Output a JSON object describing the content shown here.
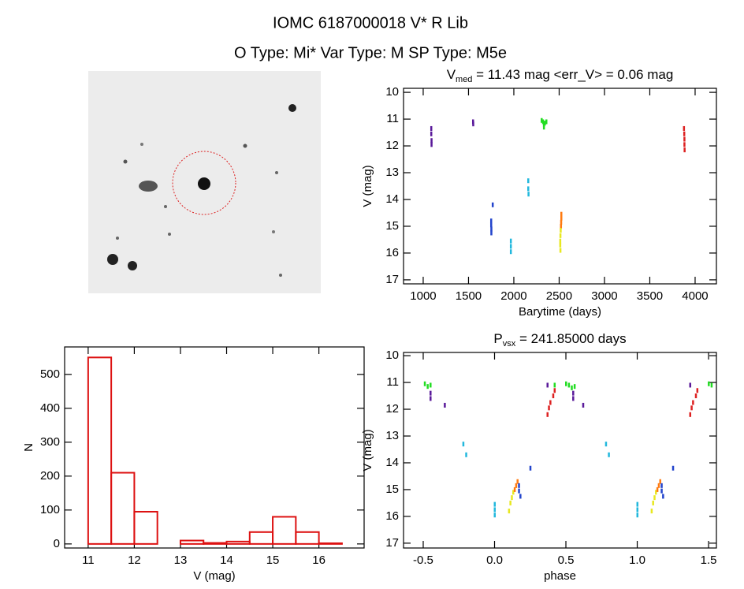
{
  "header": {
    "title": "IOMC 6187000018    V* R Lib",
    "subtitle": "O Type: Mi*   Var Type: M   SP Type: M5e"
  },
  "chart_data": [
    {
      "type": "scatter",
      "title": {
        "main": "V",
        "sub": "med",
        "rest": " = 11.43 mag <err_V> = 0.06 mag"
      },
      "xlabel": "Barytime (days)",
      "ylabel": "V (mag)",
      "xlim": [
        783,
        4235
      ],
      "ylim": [
        9.85,
        17.15
      ],
      "y_inverted": true,
      "xticks": [
        1000,
        1500,
        2000,
        2500,
        3000,
        3500,
        4000
      ],
      "yticks": [
        10,
        11,
        12,
        13,
        14,
        15,
        16,
        17
      ],
      "series": [
        {
          "color": "#5a1a9a",
          "x": [
            1087,
            1087,
            1090,
            1090,
            1548,
            1550
          ],
          "values": [
            11.35,
            11.55,
            11.8,
            11.95,
            11.1,
            11.18
          ]
        },
        {
          "color": "#22dd22",
          "x": [
            2305,
            2320,
            2330,
            2340,
            2357,
            2330
          ],
          "values": [
            11.05,
            11.1,
            11.2,
            11.15,
            11.1,
            11.3
          ]
        },
        {
          "color": "#dd2222",
          "x": [
            3875,
            3878,
            3880,
            3880,
            3882
          ],
          "values": [
            11.35,
            11.55,
            11.75,
            11.95,
            12.15
          ]
        },
        {
          "color": "#2244cc",
          "x": [
            1765,
            1748,
            1748,
            1750,
            1750
          ],
          "values": [
            14.2,
            14.8,
            14.95,
            15.1,
            15.25
          ]
        },
        {
          "color": "#22b8dd",
          "x": [
            1965,
            1965,
            1965,
            2157,
            2157,
            2160
          ],
          "values": [
            15.55,
            15.75,
            15.95,
            13.3,
            13.6,
            13.8
          ]
        },
        {
          "color": "#ff7a10",
          "x": [
            2522,
            2522,
            2520,
            2518
          ],
          "values": [
            14.55,
            14.7,
            14.85,
            15.0
          ]
        },
        {
          "color": "#e8e820",
          "x": [
            2515,
            2512,
            2510,
            2510,
            2512
          ],
          "values": [
            15.15,
            15.35,
            15.55,
            15.7,
            15.9
          ]
        }
      ]
    },
    {
      "type": "scatter",
      "title": {
        "main": "P",
        "sub": "vsx",
        "rest": " = 241.85000 days"
      },
      "xlabel": "phase",
      "ylabel": "V (mag)",
      "xlim": [
        -0.638,
        1.555
      ],
      "ylim": [
        9.88,
        17.18
      ],
      "y_inverted": true,
      "xticks": [
        -0.5,
        {
          "value": 0,
          "label": "0.0"
        },
        0.5,
        {
          "value": 1,
          "label": "1.0"
        },
        1.5
      ],
      "yticks": [
        10,
        11,
        12,
        13,
        14,
        15,
        16,
        17
      ],
      "series": [
        {
          "color": "#22dd22",
          "x": [
            -0.49,
            -0.47,
            -0.45,
            0.5,
            0.52,
            0.54,
            0.56,
            0.42,
            1.5,
            1.52
          ],
          "values": [
            11.05,
            11.15,
            11.1,
            11.05,
            11.1,
            11.2,
            11.15,
            11.1,
            11.05,
            11.1
          ]
        },
        {
          "color": "#5a1a9a",
          "x": [
            -0.45,
            -0.45,
            -0.35,
            0.37,
            0.55,
            0.55,
            0.62,
            1.37
          ],
          "values": [
            11.4,
            11.6,
            11.85,
            11.1,
            11.4,
            11.6,
            11.85,
            11.1
          ]
        },
        {
          "color": "#dd2222",
          "x": [
            0.37,
            0.38,
            0.39,
            0.41,
            0.42,
            1.37,
            1.38,
            1.39,
            1.41,
            1.42
          ],
          "values": [
            12.2,
            11.95,
            11.75,
            11.5,
            11.3,
            12.2,
            11.95,
            11.75,
            11.5,
            11.3
          ]
        },
        {
          "color": "#22b8dd",
          "x": [
            -0.22,
            -0.2,
            0.0,
            0.0,
            0.0,
            0.78,
            0.8,
            1.0,
            1.0,
            1.0
          ],
          "values": [
            13.3,
            13.7,
            15.55,
            15.75,
            15.95,
            13.3,
            13.7,
            15.55,
            15.75,
            15.95
          ]
        },
        {
          "color": "#e8e820",
          "x": [
            0.1,
            0.11,
            0.12,
            0.13,
            1.1,
            1.11,
            1.12,
            1.13
          ],
          "values": [
            15.8,
            15.5,
            15.3,
            15.1,
            15.8,
            15.5,
            15.3,
            15.1
          ]
        },
        {
          "color": "#ff7a10",
          "x": [
            0.14,
            0.15,
            0.16,
            1.14,
            1.15,
            1.16
          ],
          "values": [
            15.0,
            14.85,
            14.7,
            15.0,
            14.85,
            14.7
          ]
        },
        {
          "color": "#2244cc",
          "x": [
            0.17,
            0.17,
            0.18,
            0.25,
            1.17,
            1.17,
            1.18,
            1.25
          ],
          "values": [
            14.85,
            15.05,
            15.25,
            14.2,
            14.85,
            15.05,
            15.25,
            14.2
          ]
        }
      ]
    },
    {
      "type": "histogram",
      "xlabel": "V (mag)",
      "ylabel": "N",
      "xlim": [
        10.49,
        16.98
      ],
      "ylim": [
        -12,
        581
      ],
      "xticks": [
        11,
        12,
        13,
        14,
        15,
        16
      ],
      "yticks": [
        0,
        100,
        200,
        300,
        400,
        500
      ],
      "color": "#dd1111",
      "bins": [
        11,
        11.5,
        12,
        12.5,
        13,
        13.5,
        14,
        14.5,
        15,
        15.5,
        16,
        16.5
      ],
      "counts": [
        550,
        210,
        95,
        0,
        10,
        3,
        7,
        35,
        80,
        35,
        2
      ]
    }
  ]
}
